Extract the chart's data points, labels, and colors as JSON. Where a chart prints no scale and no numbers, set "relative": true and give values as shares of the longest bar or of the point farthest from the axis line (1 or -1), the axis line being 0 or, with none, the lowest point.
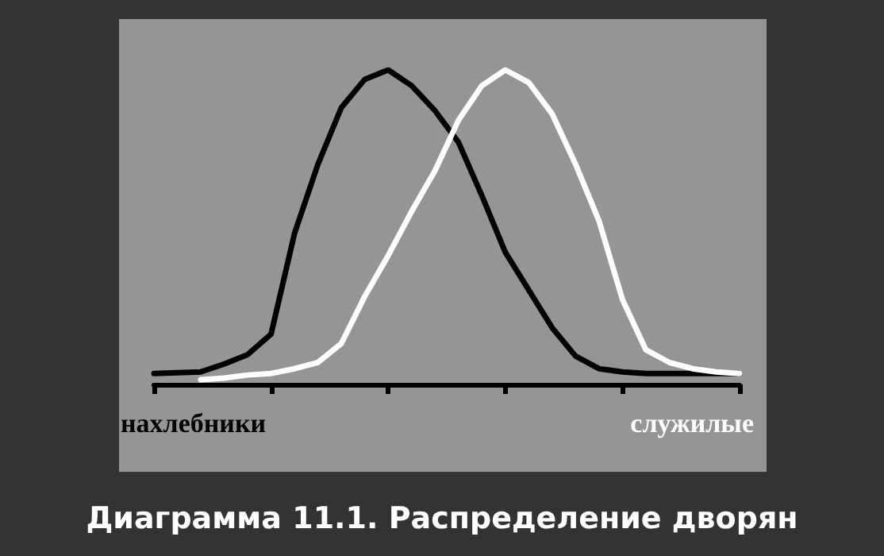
{
  "chart_data": {
    "type": "line",
    "title": "Диаграмма 11.1. Распределение дворян",
    "relative": true,
    "categories": [
      null,
      null,
      null,
      null,
      null,
      null,
      null,
      null,
      null,
      null,
      null,
      null,
      null,
      null,
      null,
      null,
      null,
      null,
      null,
      null,
      null,
      null,
      null,
      null,
      null,
      null
    ],
    "grid": false,
    "marker": "none",
    "line_style": "solid",
    "annotations": [
      "нахлебники",
      "служилые"
    ],
    "series": [
      {
        "color": "#000000",
        "values": [
          0.035,
          0.037,
          0.04,
          0.065,
          0.095,
          0.16,
          0.48,
          0.7,
          0.88,
          0.97,
          1,
          0.95,
          0.87,
          0.77,
          0.6,
          0.42,
          0.3,
          0.18,
          0.09,
          0.05,
          0.04,
          0.035,
          0.035,
          0.035,
          0.035,
          0.035
        ]
      },
      {
        "color": "#ffffff",
        "values": [
          null,
          null,
          0.015,
          0.02,
          0.03,
          0.035,
          0.05,
          0.07,
          0.13,
          0.28,
          0.41,
          0.55,
          0.68,
          0.84,
          0.95,
          1,
          0.96,
          0.86,
          0.7,
          0.52,
          0.27,
          0.11,
          0.07,
          0.05,
          0.04,
          0.035
        ]
      }
    ]
  }
}
